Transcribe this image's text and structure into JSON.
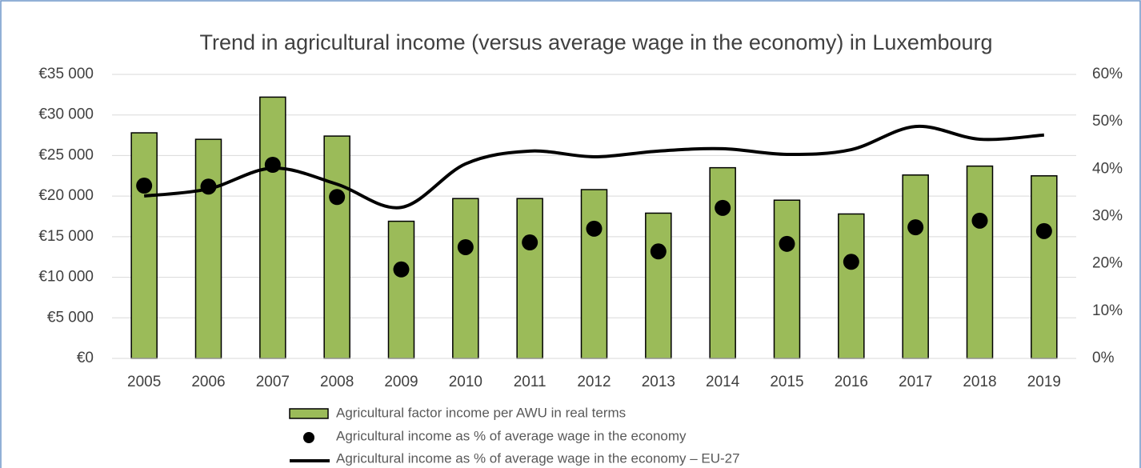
{
  "chart_data": {
    "type": "combo",
    "title": "Trend in agricultural income (versus average wage in the economy) in Luxembourg",
    "categories": [
      "2005",
      "2006",
      "2007",
      "2008",
      "2009",
      "2010",
      "2011",
      "2012",
      "2013",
      "2014",
      "2015",
      "2016",
      "2017",
      "2018",
      "2019"
    ],
    "series": [
      {
        "name": "Agricultural factor income per AWU in real terms",
        "type": "bar",
        "color": "#9bbb59",
        "values": [
          27800,
          27000,
          32200,
          27400,
          16900,
          19700,
          19700,
          20800,
          17900,
          23500,
          19500,
          17800,
          22600,
          23700,
          22500
        ]
      },
      {
        "name": "Agricultural income as % of average wage in the economy",
        "type": "scatter",
        "color": "#000000",
        "axis": "y2",
        "values": [
          36.5,
          36.3,
          40.9,
          34.1,
          18.8,
          23.5,
          24.5,
          27.4,
          22.6,
          31.8,
          24.2,
          20.4,
          27.7,
          29.1,
          26.9
        ]
      },
      {
        "name": "Agricultural income as % of average wage in the economy – EU-27",
        "type": "line",
        "color": "#000000",
        "axis": "y2",
        "values": [
          34.3,
          35.8,
          40.2,
          36.8,
          31.9,
          41.1,
          43.8,
          42.6,
          43.8,
          44.3,
          43.1,
          44.1,
          49.0,
          46.3,
          47.2
        ]
      }
    ],
    "ylim": [
      0,
      35000
    ],
    "yticks": [
      {
        "value": 0,
        "label": "€0"
      },
      {
        "value": 5000,
        "label": "€5 000"
      },
      {
        "value": 10000,
        "label": "€10 000"
      },
      {
        "value": 15000,
        "label": "€15 000"
      },
      {
        "value": 20000,
        "label": "€20 000"
      },
      {
        "value": 25000,
        "label": "€25 000"
      },
      {
        "value": 30000,
        "label": "€30 000"
      },
      {
        "value": 35000,
        "label": "€35 000"
      }
    ],
    "y2lim": [
      0,
      60
    ],
    "y2ticks": [
      {
        "value": 0,
        "label": "0%"
      },
      {
        "value": 10,
        "label": "10%"
      },
      {
        "value": 20,
        "label": "20%"
      },
      {
        "value": 30,
        "label": "30%"
      },
      {
        "value": 40,
        "label": "40%"
      },
      {
        "value": 50,
        "label": "50%"
      },
      {
        "value": 60,
        "label": "60%"
      }
    ],
    "grid": true
  }
}
